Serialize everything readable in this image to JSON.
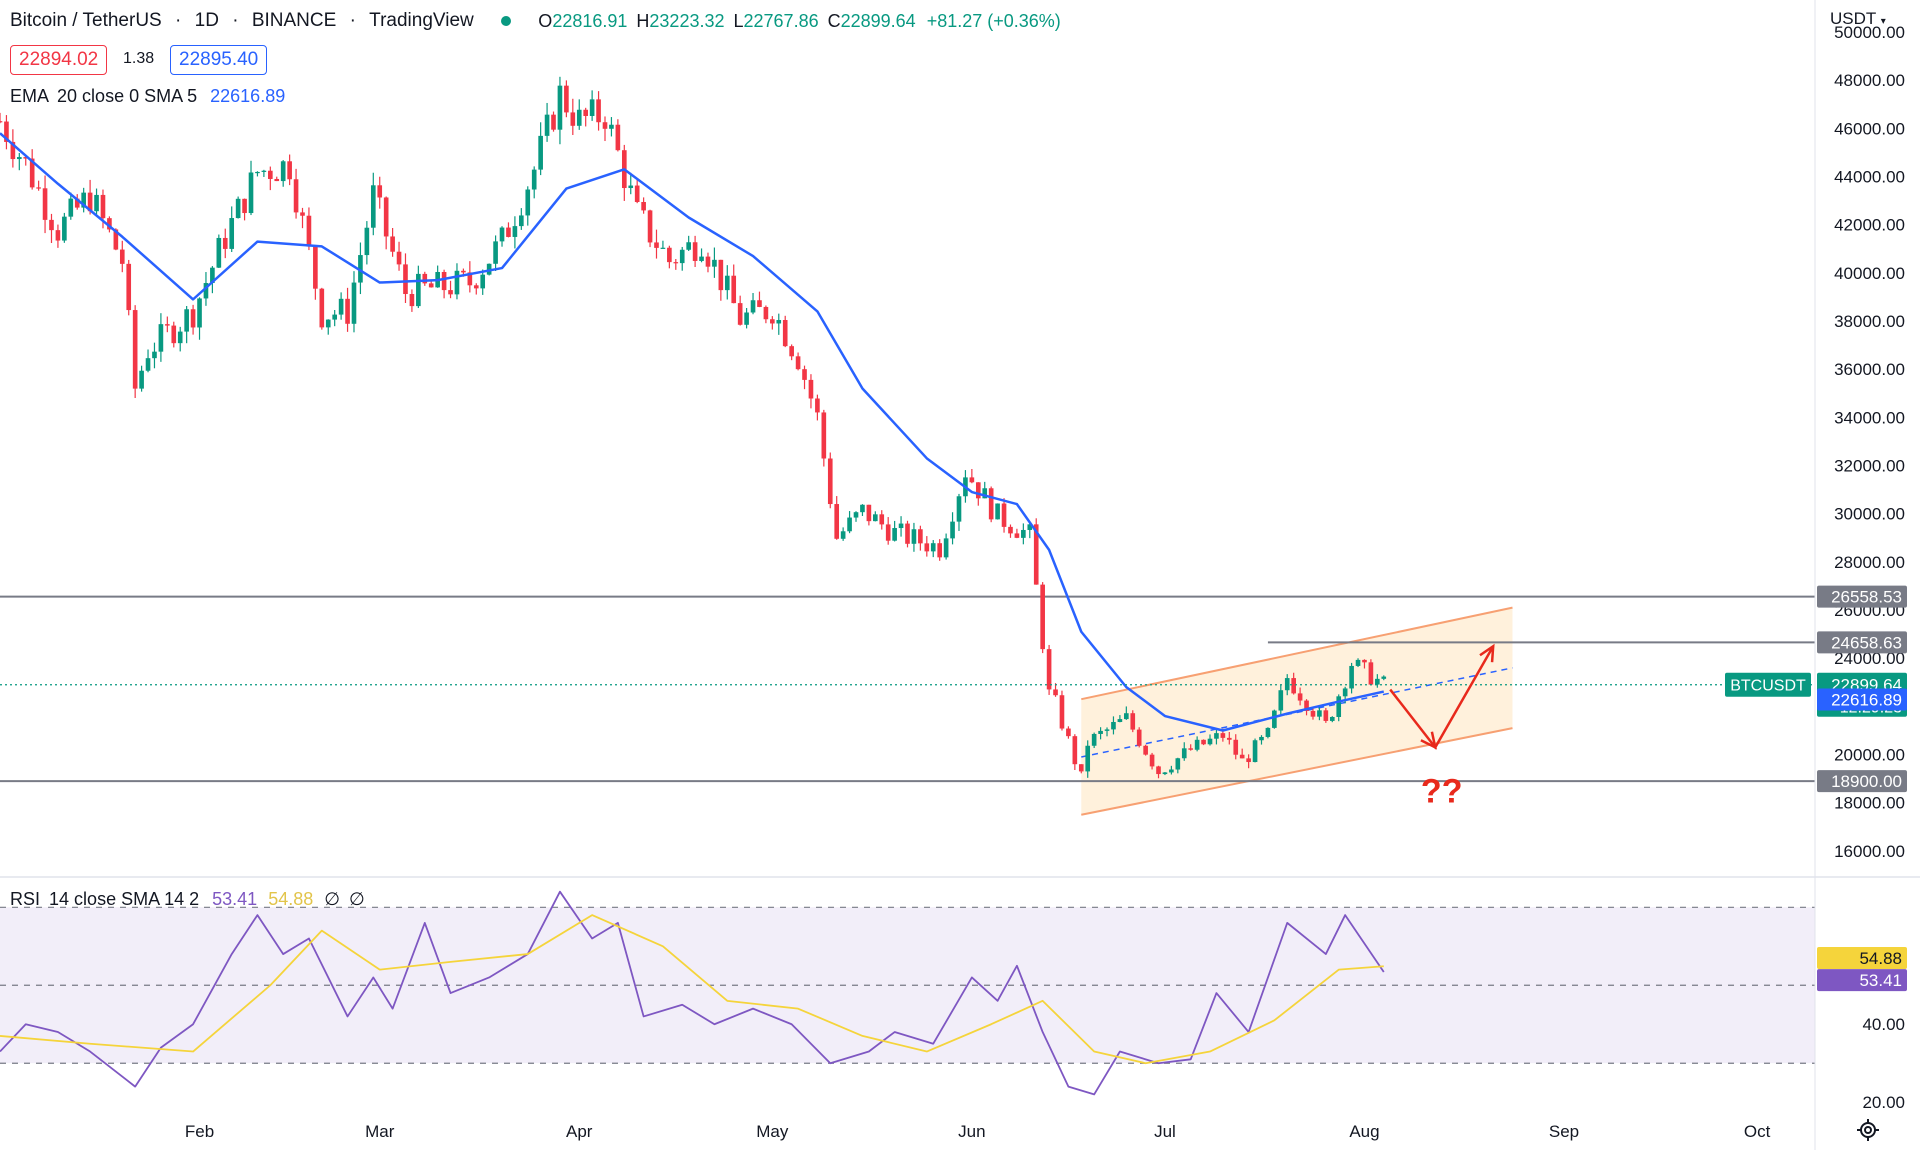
{
  "header": {
    "symbol": "Bitcoin / TetherUS",
    "interval": "1D",
    "exchange": "BINANCE",
    "source": "TradingView",
    "open_label": "O",
    "open": "22816.91",
    "high_label": "H",
    "high": "23223.32",
    "low_label": "L",
    "low": "22767.86",
    "close_label": "C",
    "close": "22899.64",
    "change": "+81.27 (+0.36%)",
    "status_color": "#089981"
  },
  "trade": {
    "sell_price": "22894.02",
    "spread": "1.38",
    "buy_price": "22895.40"
  },
  "ema_legend": {
    "label": "EMA",
    "params": "20 close 0 SMA 5",
    "value": "22616.89"
  },
  "rsi_legend": {
    "label": "RSI",
    "params": "14 close SMA 14 2",
    "rsi": "53.41",
    "sma": "54.88",
    "icon1": "∅",
    "icon2": "∅"
  },
  "axis": {
    "currency": "USDT",
    "settings_icon": "gear-icon"
  },
  "colors": {
    "up": "#089981",
    "down": "#f23645",
    "ema": "#2962ff",
    "rsi": "#7e57c2",
    "rsi_sma": "#f5d43b",
    "channel": "#ffe0b2",
    "channel_edge": "#f7a072",
    "arrow": "#e8291c"
  },
  "chart_data": [
    {
      "type": "candlestick",
      "title": "",
      "xlabel": "",
      "ylabel": "",
      "x_ticks": [
        "Feb",
        "Mar",
        "Apr",
        "May",
        "Jun",
        "Jul",
        "Aug",
        "Sep",
        "Oct"
      ],
      "y_ticks": [
        "16000.00",
        "18000.00",
        "20000.00",
        "22000.00",
        "24000.00",
        "26000.00",
        "28000.00",
        "30000.00",
        "32000.00",
        "34000.00",
        "36000.00",
        "38000.00",
        "40000.00",
        "42000.00",
        "44000.00",
        "46000.00",
        "48000.00",
        "50000.00"
      ],
      "ylim": [
        15000,
        50500
      ],
      "grid": false,
      "x_range": [
        "2022-01-01",
        "2022-10-10"
      ],
      "series": [
        {
          "name": "BTCUSDT",
          "kind": "candles",
          "anchors": [
            [
              "2022-01-01",
              46300
            ],
            [
              "2022-01-05",
              44500
            ],
            [
              "2022-01-10",
              41800
            ],
            [
              "2022-01-15",
              43200
            ],
            [
              "2022-01-20",
              40500
            ],
            [
              "2022-01-22",
              35200
            ],
            [
              "2022-01-24",
              36800
            ],
            [
              "2022-01-31",
              38400
            ],
            [
              "2022-02-05",
              41500
            ],
            [
              "2022-02-10",
              44200
            ],
            [
              "2022-02-15",
              44500
            ],
            [
              "2022-02-20",
              38300
            ],
            [
              "2022-02-24",
              38400
            ],
            [
              "2022-02-28",
              43200
            ],
            [
              "2022-03-05",
              39200
            ],
            [
              "2022-03-10",
              39400
            ],
            [
              "2022-03-15",
              39600
            ],
            [
              "2022-03-20",
              41300
            ],
            [
              "2022-03-25",
              44300
            ],
            [
              "2022-03-29",
              47400
            ],
            [
              "2022-04-01",
              46300
            ],
            [
              "2022-04-05",
              46600
            ],
            [
              "2022-04-10",
              42400
            ],
            [
              "2022-04-15",
              40500
            ],
            [
              "2022-04-20",
              41400
            ],
            [
              "2022-04-26",
              38100
            ],
            [
              "2022-05-01",
              38500
            ],
            [
              "2022-05-05",
              36500
            ],
            [
              "2022-05-08",
              34000
            ],
            [
              "2022-05-11",
              29000
            ],
            [
              "2022-05-15",
              30100
            ],
            [
              "2022-05-20",
              29200
            ],
            [
              "2022-05-27",
              28600
            ],
            [
              "2022-05-31",
              31800
            ],
            [
              "2022-06-05",
              29900
            ],
            [
              "2022-06-10",
              29100
            ],
            [
              "2022-06-13",
              22500
            ],
            [
              "2022-06-14",
              22100
            ],
            [
              "2022-06-18",
              19000
            ],
            [
              "2022-06-19",
              20500
            ],
            [
              "2022-06-25",
              21500
            ],
            [
              "2022-06-30",
              19300
            ],
            [
              "2022-07-05",
              20200
            ],
            [
              "2022-07-10",
              20800
            ],
            [
              "2022-07-13",
              19700
            ],
            [
              "2022-07-17",
              20800
            ],
            [
              "2022-07-20",
              23200
            ],
            [
              "2022-07-26",
              21200
            ],
            [
              "2022-07-30",
              23800
            ],
            [
              "2022-08-04",
              22900
            ]
          ],
          "last": {
            "label": "BTCUSDT",
            "value": "22899.64",
            "countdown": "12:29:23"
          }
        },
        {
          "name": "EMA 20",
          "kind": "line",
          "points": [
            [
              "2022-01-01",
              45800
            ],
            [
              "2022-01-10",
              43700
            ],
            [
              "2022-01-20",
              41500
            ],
            [
              "2022-01-31",
              38900
            ],
            [
              "2022-02-10",
              41300
            ],
            [
              "2022-02-20",
              41100
            ],
            [
              "2022-03-01",
              39600
            ],
            [
              "2022-03-10",
              39700
            ],
            [
              "2022-03-20",
              40200
            ],
            [
              "2022-03-30",
              43500
            ],
            [
              "2022-04-08",
              44300
            ],
            [
              "2022-04-18",
              42300
            ],
            [
              "2022-04-28",
              40700
            ],
            [
              "2022-05-08",
              38400
            ],
            [
              "2022-05-15",
              35200
            ],
            [
              "2022-05-25",
              32300
            ],
            [
              "2022-06-01",
              30900
            ],
            [
              "2022-06-08",
              30400
            ],
            [
              "2022-06-13",
              28500
            ],
            [
              "2022-06-18",
              25100
            ],
            [
              "2022-06-25",
              22800
            ],
            [
              "2022-07-01",
              21600
            ],
            [
              "2022-07-10",
              21000
            ],
            [
              "2022-07-20",
              21700
            ],
            [
              "2022-07-28",
              22200
            ],
            [
              "2022-08-04",
              22617
            ]
          ],
          "last": {
            "value": "22616.89"
          }
        }
      ],
      "levels": [
        {
          "value": 26558.53,
          "label": "26558.53"
        },
        {
          "value": 24658.63,
          "label": "24658.63"
        },
        {
          "value": 18900.0,
          "label": "18900.00"
        }
      ],
      "annotations": [
        {
          "kind": "channel",
          "from": [
            "2022-06-18",
            22300
          ],
          "to": [
            "2022-08-24",
            26100
          ],
          "lower_from": [
            "2022-06-18",
            17500
          ],
          "lower_to": [
            "2022-08-24",
            21100
          ]
        },
        {
          "kind": "arrow-path",
          "points": [
            [
              "2022-08-05",
              22700
            ],
            [
              "2022-08-12",
              20300
            ],
            [
              "2022-08-21",
              24500
            ]
          ]
        },
        {
          "kind": "text",
          "text": "??",
          "at": [
            "2022-08-13",
            18000
          ]
        }
      ]
    },
    {
      "type": "line",
      "title": "",
      "xlabel": "",
      "ylabel": "",
      "y_ticks": [
        "20.00",
        "40.00"
      ],
      "ylim": [
        18,
        77
      ],
      "bands": [
        70,
        50,
        30
      ],
      "series": [
        {
          "name": "RSI 14",
          "points": [
            [
              "2022-01-01",
              33
            ],
            [
              "2022-01-05",
              40
            ],
            [
              "2022-01-10",
              38
            ],
            [
              "2022-01-15",
              33
            ],
            [
              "2022-01-22",
              24
            ],
            [
              "2022-01-26",
              34
            ],
            [
              "2022-01-31",
              40
            ],
            [
              "2022-02-06",
              58
            ],
            [
              "2022-02-10",
              68
            ],
            [
              "2022-02-14",
              58
            ],
            [
              "2022-02-18",
              62
            ],
            [
              "2022-02-24",
              42
            ],
            [
              "2022-02-28",
              52
            ],
            [
              "2022-03-03",
              44
            ],
            [
              "2022-03-08",
              66
            ],
            [
              "2022-03-12",
              48
            ],
            [
              "2022-03-18",
              52
            ],
            [
              "2022-03-24",
              58
            ],
            [
              "2022-03-29",
              74
            ],
            [
              "2022-04-03",
              62
            ],
            [
              "2022-04-07",
              66
            ],
            [
              "2022-04-11",
              42
            ],
            [
              "2022-04-17",
              45
            ],
            [
              "2022-04-22",
              40
            ],
            [
              "2022-04-28",
              44
            ],
            [
              "2022-05-04",
              40
            ],
            [
              "2022-05-10",
              30
            ],
            [
              "2022-05-16",
              33
            ],
            [
              "2022-05-20",
              38
            ],
            [
              "2022-05-26",
              35
            ],
            [
              "2022-06-01",
              52
            ],
            [
              "2022-06-05",
              46
            ],
            [
              "2022-06-08",
              55
            ],
            [
              "2022-06-12",
              38
            ],
            [
              "2022-06-16",
              24
            ],
            [
              "2022-06-20",
              22
            ],
            [
              "2022-06-24",
              33
            ],
            [
              "2022-06-30",
              30
            ],
            [
              "2022-07-05",
              31
            ],
            [
              "2022-07-09",
              48
            ],
            [
              "2022-07-14",
              38
            ],
            [
              "2022-07-20",
              66
            ],
            [
              "2022-07-26",
              58
            ],
            [
              "2022-07-29",
              68
            ],
            [
              "2022-08-04",
              53.41
            ]
          ]
        },
        {
          "name": "SMA 14",
          "points": [
            [
              "2022-01-01",
              37
            ],
            [
              "2022-01-15",
              35
            ],
            [
              "2022-01-31",
              33
            ],
            [
              "2022-02-12",
              50
            ],
            [
              "2022-02-20",
              64
            ],
            [
              "2022-03-01",
              54
            ],
            [
              "2022-03-12",
              56
            ],
            [
              "2022-03-24",
              58
            ],
            [
              "2022-04-03",
              68
            ],
            [
              "2022-04-14",
              60
            ],
            [
              "2022-04-24",
              46
            ],
            [
              "2022-05-05",
              44
            ],
            [
              "2022-05-15",
              37
            ],
            [
              "2022-05-25",
              33
            ],
            [
              "2022-06-04",
              40
            ],
            [
              "2022-06-12",
              46
            ],
            [
              "2022-06-20",
              33
            ],
            [
              "2022-06-28",
              30
            ],
            [
              "2022-07-08",
              33
            ],
            [
              "2022-07-18",
              41
            ],
            [
              "2022-07-28",
              54
            ],
            [
              "2022-08-04",
              54.88
            ]
          ]
        }
      ]
    }
  ]
}
